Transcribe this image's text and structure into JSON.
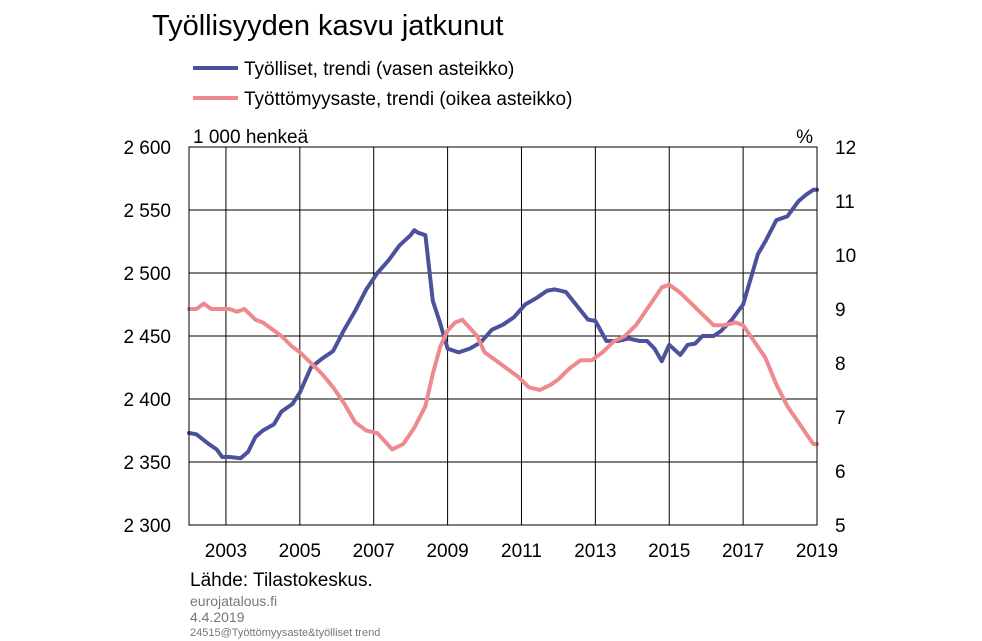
{
  "title": "Työllisyyden  kasvu jatkunut",
  "legend": [
    {
      "label": "Työlliset, trendi (vasen asteikko)",
      "color": "#4b529b"
    },
    {
      "label": "Työttömyysaste, trendi (oikea asteikko)",
      "color": "#ee8a8f"
    }
  ],
  "left_unit": "1 000 henkeä",
  "right_unit": "%",
  "source": "Lähde: Tilastokeskus.",
  "footer_site": "eurojatalous.fi",
  "footer_date": "4.4.2019",
  "footer_id": "24515@Työttömyysaste&työlliset trend",
  "chart_data": {
    "type": "line",
    "title": "Työllisyyden  kasvu jatkunut",
    "xlim": [
      2002,
      2019
    ],
    "x_ticks": [
      2003,
      2005,
      2007,
      2009,
      2011,
      2013,
      2015,
      2017,
      2019
    ],
    "x_tick_labels": [
      "2003",
      "2005",
      "2007",
      "2009",
      "2011",
      "2013",
      "2015",
      "2017",
      "2019"
    ],
    "y_left": {
      "label": "1 000 henkeä",
      "lim": [
        2300,
        2600
      ],
      "ticks": [
        2300,
        2350,
        2400,
        2450,
        2500,
        2550,
        2600
      ],
      "tick_labels": [
        "2 300",
        "2 350",
        "2 400",
        "2 450",
        "2 500",
        "2 550",
        "2 600"
      ]
    },
    "y_right": {
      "label": "%",
      "lim": [
        5,
        12
      ],
      "ticks": [
        5,
        6,
        7,
        8,
        9,
        10,
        11,
        12
      ],
      "tick_labels": [
        "5",
        "6",
        "7",
        "8",
        "9",
        "10",
        "11",
        "12"
      ]
    },
    "grid": true,
    "legend_position": "top",
    "series": [
      {
        "name": "Työlliset, trendi (vasen asteikko)",
        "axis": "left",
        "color": "#4b529b",
        "x": [
          2002.0,
          2002.2,
          2002.5,
          2002.75,
          2002.9,
          2003.1,
          2003.4,
          2003.6,
          2003.8,
          2004.0,
          2004.3,
          2004.5,
          2004.8,
          2005.0,
          2005.3,
          2005.6,
          2005.9,
          2006.2,
          2006.5,
          2006.8,
          2007.1,
          2007.4,
          2007.7,
          2008.0,
          2008.1,
          2008.2,
          2008.4,
          2008.6,
          2008.8,
          2009.0,
          2009.3,
          2009.6,
          2009.9,
          2010.2,
          2010.5,
          2010.8,
          2011.1,
          2011.4,
          2011.7,
          2011.9,
          2012.2,
          2012.5,
          2012.8,
          2013.0,
          2013.3,
          2013.6,
          2013.9,
          2014.2,
          2014.4,
          2014.6,
          2014.8,
          2015.0,
          2015.3,
          2015.5,
          2015.7,
          2015.9,
          2016.2,
          2016.4,
          2016.7,
          2017.0,
          2017.2,
          2017.4,
          2017.6,
          2017.9,
          2018.2,
          2018.5,
          2018.7,
          2018.9,
          2019.0
        ],
        "values": [
          2373,
          2372,
          2365,
          2360,
          2354,
          2354,
          2353,
          2358,
          2370,
          2375,
          2380,
          2390,
          2396,
          2405,
          2425,
          2432,
          2438,
          2455,
          2470,
          2487,
          2500,
          2510,
          2522,
          2530,
          2534,
          2532,
          2530,
          2478,
          2460,
          2440,
          2437,
          2440,
          2445,
          2455,
          2459,
          2465,
          2475,
          2480,
          2486,
          2487,
          2485,
          2474,
          2463,
          2462,
          2446,
          2446,
          2448,
          2446,
          2446,
          2440,
          2430,
          2443,
          2435,
          2443,
          2444,
          2450,
          2450,
          2454,
          2463,
          2475,
          2495,
          2515,
          2525,
          2542,
          2545,
          2557,
          2562,
          2566,
          2566
        ]
      },
      {
        "name": "Työttömyysaste, trendi (oikea asteikko)",
        "axis": "right",
        "color": "#ee8a8f",
        "x": [
          2002.0,
          2002.2,
          2002.4,
          2002.6,
          2002.9,
          2003.1,
          2003.3,
          2003.5,
          2003.8,
          2004.0,
          2004.2,
          2004.5,
          2004.8,
          2005.0,
          2005.3,
          2005.6,
          2005.9,
          2006.2,
          2006.5,
          2006.8,
          2007.1,
          2007.3,
          2007.5,
          2007.8,
          2008.1,
          2008.4,
          2008.6,
          2008.8,
          2009.0,
          2009.2,
          2009.4,
          2009.6,
          2009.8,
          2010.0,
          2010.3,
          2010.6,
          2010.9,
          2011.2,
          2011.5,
          2011.8,
          2012.0,
          2012.3,
          2012.6,
          2012.9,
          2013.2,
          2013.5,
          2013.8,
          2014.1,
          2014.4,
          2014.6,
          2014.8,
          2015.0,
          2015.3,
          2015.6,
          2015.9,
          2016.2,
          2016.5,
          2016.8,
          2017.0,
          2017.3,
          2017.6,
          2017.9,
          2018.2,
          2018.5,
          2018.7,
          2018.9,
          2019.0
        ],
        "values": [
          9.0,
          9.0,
          9.1,
          9.0,
          9.0,
          9.0,
          8.95,
          9.0,
          8.8,
          8.75,
          8.65,
          8.5,
          8.3,
          8.2,
          8.0,
          7.8,
          7.55,
          7.25,
          6.9,
          6.75,
          6.7,
          6.55,
          6.4,
          6.5,
          6.8,
          7.2,
          7.8,
          8.3,
          8.6,
          8.75,
          8.8,
          8.65,
          8.5,
          8.2,
          8.05,
          7.9,
          7.75,
          7.55,
          7.5,
          7.6,
          7.7,
          7.9,
          8.05,
          8.05,
          8.2,
          8.4,
          8.5,
          8.7,
          9.0,
          9.2,
          9.4,
          9.45,
          9.3,
          9.1,
          8.9,
          8.7,
          8.7,
          8.75,
          8.7,
          8.4,
          8.1,
          7.6,
          7.2,
          6.9,
          6.7,
          6.5,
          6.5
        ]
      }
    ]
  }
}
